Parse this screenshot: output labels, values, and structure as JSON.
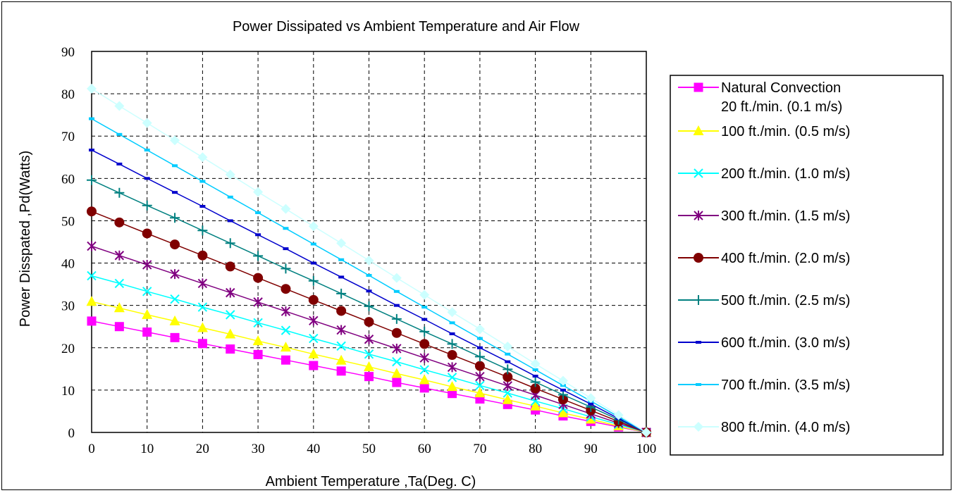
{
  "chart_data": {
    "type": "line",
    "title": "Power Dissipated vs Ambient Temperature and Air Flow",
    "xlabel": "Ambient Temperature ,Ta(Deg. C)",
    "ylabel": "Power Disspated ,Pd(Watts)",
    "xlim": [
      0,
      100
    ],
    "ylim": [
      0,
      90
    ],
    "xticks": [
      0,
      10,
      20,
      30,
      40,
      50,
      60,
      70,
      80,
      90,
      100
    ],
    "yticks": [
      0,
      10,
      20,
      30,
      40,
      50,
      60,
      70,
      80,
      90
    ],
    "grid": true,
    "legend_position": "right",
    "x": [
      0,
      5,
      10,
      15,
      20,
      25,
      30,
      35,
      40,
      45,
      50,
      55,
      60,
      65,
      70,
      75,
      80,
      85,
      90,
      95,
      100
    ],
    "series": [
      {
        "name": "Natural Convection 20 ft./min. (0.1 m/s)",
        "color": "#ff00ff",
        "marker": "square",
        "values": [
          26.3,
          25.0,
          23.7,
          22.4,
          21.0,
          19.7,
          18.4,
          17.1,
          15.8,
          14.5,
          13.2,
          11.8,
          10.5,
          9.2,
          7.9,
          6.6,
          5.3,
          3.9,
          2.6,
          1.3,
          0
        ]
      },
      {
        "name": "100 ft./min. (0.5 m/s)",
        "color": "#ffff00",
        "marker": "triangle",
        "values": [
          30.9,
          29.4,
          27.8,
          26.3,
          24.7,
          23.2,
          21.6,
          20.1,
          18.5,
          17.0,
          15.5,
          13.9,
          12.4,
          10.8,
          9.3,
          7.7,
          6.2,
          4.6,
          3.1,
          1.5,
          0
        ]
      },
      {
        "name": "200 ft./min. (1.0 m/s)",
        "color": "#00ffff",
        "marker": "x",
        "values": [
          37.0,
          35.2,
          33.3,
          31.5,
          29.6,
          27.8,
          25.9,
          24.1,
          22.2,
          20.4,
          18.5,
          16.7,
          14.8,
          13.0,
          11.1,
          9.3,
          7.4,
          5.6,
          3.7,
          1.9,
          0
        ]
      },
      {
        "name": "300 ft./min. (1.5 m/s)",
        "color": "#800080",
        "marker": "star",
        "values": [
          44.0,
          41.8,
          39.6,
          37.4,
          35.2,
          33.0,
          30.8,
          28.6,
          26.4,
          24.2,
          22.0,
          19.8,
          17.6,
          15.4,
          13.2,
          11.0,
          8.8,
          6.6,
          4.4,
          2.2,
          0
        ]
      },
      {
        "name": "400 ft./min. (2.0 m/s)",
        "color": "#800000",
        "marker": "circle",
        "values": [
          52.2,
          49.6,
          47.0,
          44.4,
          41.8,
          39.2,
          36.5,
          33.9,
          31.3,
          28.7,
          26.1,
          23.5,
          20.9,
          18.3,
          15.7,
          13.1,
          10.4,
          7.8,
          5.2,
          2.6,
          0
        ]
      },
      {
        "name": "500 ft./min. (2.5 m/s)",
        "color": "#008080",
        "marker": "plus",
        "values": [
          59.6,
          56.6,
          53.6,
          50.7,
          47.7,
          44.7,
          41.7,
          38.7,
          35.8,
          32.8,
          29.8,
          26.8,
          23.8,
          20.9,
          17.9,
          14.9,
          11.9,
          8.9,
          6.0,
          3.0,
          0
        ]
      },
      {
        "name": "600 ft./min. (3.0 m/s)",
        "color": "#0000cc",
        "marker": "dash",
        "values": [
          66.7,
          63.4,
          60.0,
          56.7,
          53.4,
          50.0,
          46.7,
          43.4,
          40.0,
          36.7,
          33.4,
          30.0,
          26.7,
          23.3,
          20.0,
          16.7,
          13.3,
          10.0,
          6.7,
          3.3,
          0
        ]
      },
      {
        "name": "700 ft./min. (3.5 m/s)",
        "color": "#00ccff",
        "marker": "dash",
        "values": [
          74.1,
          70.4,
          66.7,
          63.0,
          59.3,
          55.6,
          51.9,
          48.2,
          44.5,
          40.8,
          37.1,
          33.3,
          29.6,
          25.9,
          22.2,
          18.5,
          14.8,
          11.1,
          7.4,
          3.7,
          0
        ]
      },
      {
        "name": "800 ft./min. (4.0 m/s)",
        "color": "#ccffff",
        "marker": "diamond",
        "values": [
          81.2,
          77.1,
          73.1,
          69.0,
          65.0,
          60.9,
          56.8,
          52.8,
          48.7,
          44.7,
          40.6,
          36.5,
          32.5,
          28.4,
          24.4,
          20.3,
          16.2,
          12.2,
          8.1,
          4.1,
          0
        ]
      }
    ],
    "legend": [
      {
        "lines": [
          "Natural Convection",
          "20 ft./min. (0.1 m/s)"
        ]
      },
      {
        "lines": [
          "100 ft./min. (0.5 m/s)"
        ]
      },
      {
        "lines": [
          "200 ft./min. (1.0 m/s)"
        ]
      },
      {
        "lines": [
          "300 ft./min. (1.5 m/s)"
        ]
      },
      {
        "lines": [
          "400 ft./min. (2.0 m/s)"
        ]
      },
      {
        "lines": [
          "500 ft./min. (2.5 m/s)"
        ]
      },
      {
        "lines": [
          "600 ft./min. (3.0 m/s)"
        ]
      },
      {
        "lines": [
          "700 ft./min. (3.5 m/s)"
        ]
      },
      {
        "lines": [
          "800 ft./min. (4.0 m/s)"
        ]
      }
    ]
  }
}
